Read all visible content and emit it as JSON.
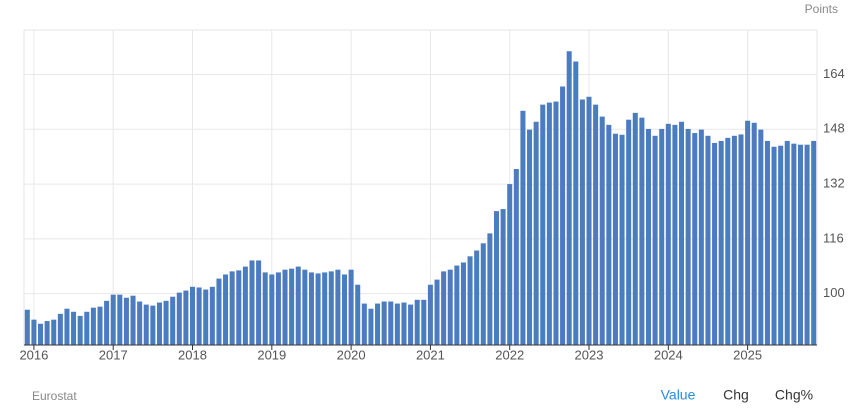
{
  "chart_data": {
    "type": "bar",
    "unit_label": "Points",
    "color": "#4c7cc0",
    "grid": true,
    "categories": [
      null,
      "2016",
      null,
      null,
      null,
      null,
      null,
      null,
      null,
      null,
      null,
      null,
      null,
      "2017",
      null,
      null,
      null,
      null,
      null,
      null,
      null,
      null,
      null,
      null,
      null,
      "2018",
      null,
      null,
      null,
      null,
      null,
      null,
      null,
      null,
      null,
      null,
      null,
      "2019",
      null,
      null,
      null,
      null,
      null,
      null,
      null,
      null,
      null,
      null,
      null,
      "2020",
      null,
      null,
      null,
      null,
      null,
      null,
      null,
      null,
      null,
      null,
      null,
      "2021",
      null,
      null,
      null,
      null,
      null,
      null,
      null,
      null,
      null,
      null,
      null,
      "2022",
      null,
      null,
      null,
      null,
      null,
      null,
      null,
      null,
      null,
      null,
      null,
      "2023",
      null,
      null,
      null,
      null,
      null,
      null,
      null,
      null,
      null,
      null,
      null,
      "2024",
      null,
      null,
      null,
      null,
      null,
      null,
      null,
      null,
      null,
      null,
      null,
      "2025",
      null,
      null,
      null,
      null,
      null,
      null,
      null,
      null,
      null,
      null
    ],
    "values": [
      95.3,
      92.4,
      91.2,
      92,
      92.4,
      94.1,
      95.6,
      94.7,
      93.5,
      94.7,
      95.9,
      96.2,
      97.9,
      99.7,
      99.7,
      98.8,
      99.4,
      97.7,
      96.8,
      96.5,
      97.4,
      97.9,
      99.1,
      100.3,
      100.9,
      102,
      101.8,
      101.2,
      102,
      104.4,
      105.6,
      106.5,
      106.8,
      107.9,
      109.7,
      109.7,
      106.2,
      105.6,
      106.2,
      107,
      107.3,
      107.9,
      107,
      106.2,
      105.9,
      106.2,
      106.5,
      107,
      105.6,
      107,
      102.6,
      97.1,
      95.6,
      97.1,
      97.7,
      97.7,
      97.1,
      97.4,
      96.8,
      98.2,
      98.2,
      102.6,
      104.1,
      106.5,
      107,
      108.2,
      109.1,
      110.9,
      112.6,
      114.7,
      117.6,
      124.1,
      124.7,
      132,
      136.4,
      153.4,
      147.9,
      150.2,
      155.2,
      155.8,
      156.1,
      160.5,
      170.8,
      167.8,
      156.7,
      157.5,
      155.2,
      151.7,
      149.3,
      146.7,
      146.4,
      150.8,
      152.8,
      151.4,
      148.1,
      146.1,
      148.1,
      149.6,
      149.3,
      150.2,
      148.1,
      146.9,
      147.9,
      146.1,
      144,
      144.6,
      145.5,
      146.1,
      146.5,
      150.5,
      149.9,
      147.9,
      144.6,
      142.9,
      143.2,
      144.6,
      143.8,
      143.5,
      143.5,
      144.6
    ],
    "ylim": [
      85,
      177
    ],
    "yticks": [
      100,
      116,
      132,
      148,
      164
    ]
  },
  "source": "Eurostat",
  "tabs": [
    "Value",
    "Chg",
    "Chg%"
  ]
}
